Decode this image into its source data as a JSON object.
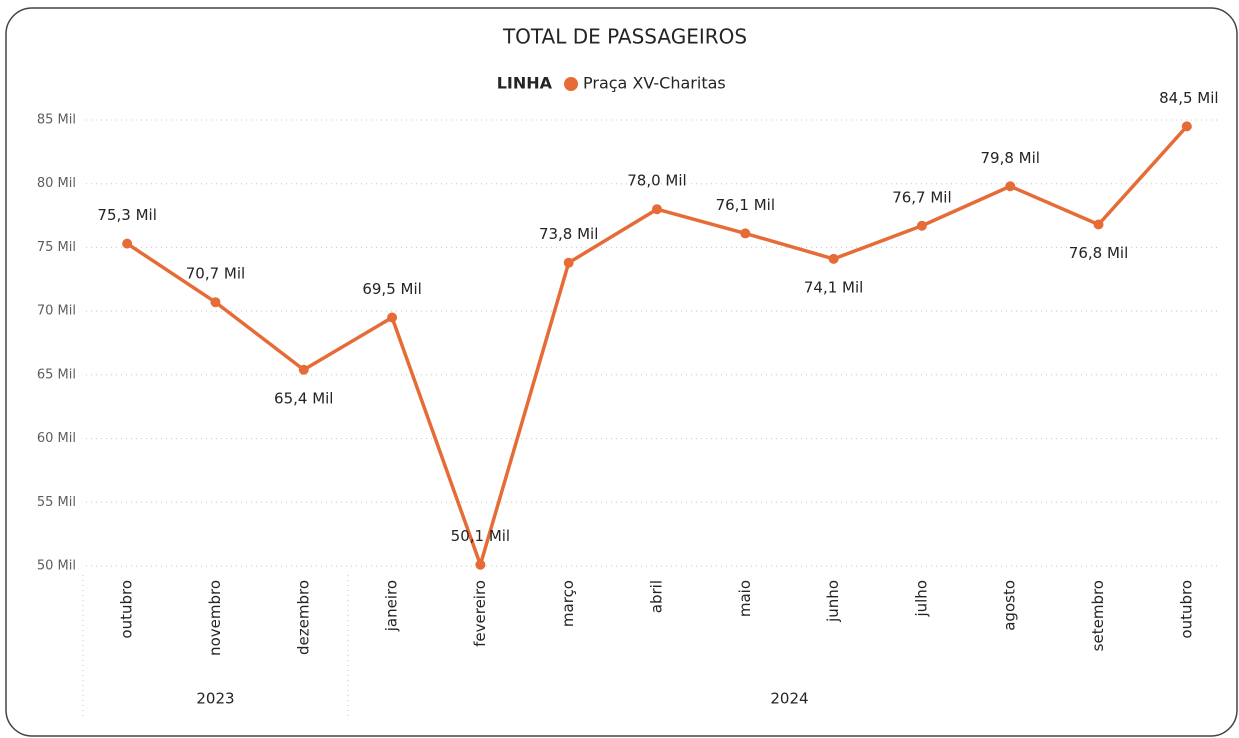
{
  "chart_data": {
    "type": "line",
    "title": "TOTAL DE PASSAGEIROS",
    "legend_title": "LINHA",
    "categories": [
      "outubro",
      "novembro",
      "dezembro",
      "janeiro",
      "fevereiro",
      "março",
      "abril",
      "maio",
      "junho",
      "julho",
      "agosto",
      "setembro",
      "outubro"
    ],
    "category_groups": [
      "2023",
      "2023",
      "2023",
      "2024",
      "2024",
      "2024",
      "2024",
      "2024",
      "2024",
      "2024",
      "2024",
      "2024",
      "2024"
    ],
    "series": [
      {
        "name": "Praça XV-Charitas",
        "color": "#e66c37",
        "values": [
          75.3,
          70.7,
          65.4,
          69.5,
          50.1,
          73.8,
          78.0,
          76.1,
          74.1,
          76.7,
          79.8,
          76.8,
          84.5
        ],
        "value_labels": [
          "75,3 Mil",
          "70,7 Mil",
          "65,4 Mil",
          "69,5 Mil",
          "50,1 Mil",
          "73,8 Mil",
          "78,0 Mil",
          "76,1 Mil",
          "74,1 Mil",
          "76,7 Mil",
          "79,8 Mil",
          "76,8 Mil",
          "84,5 Mil"
        ]
      }
    ],
    "ylim": [
      50,
      85
    ],
    "yticks": [
      {
        "value": 50,
        "label": "50 Mil"
      },
      {
        "value": 55,
        "label": "55 Mil"
      },
      {
        "value": 60,
        "label": "60 Mil"
      },
      {
        "value": 65,
        "label": "65 Mil"
      },
      {
        "value": 70,
        "label": "70 Mil"
      },
      {
        "value": 75,
        "label": "75 Mil"
      },
      {
        "value": 80,
        "label": "80 Mil"
      },
      {
        "value": 85,
        "label": "85 Mil"
      }
    ],
    "grid": true
  }
}
